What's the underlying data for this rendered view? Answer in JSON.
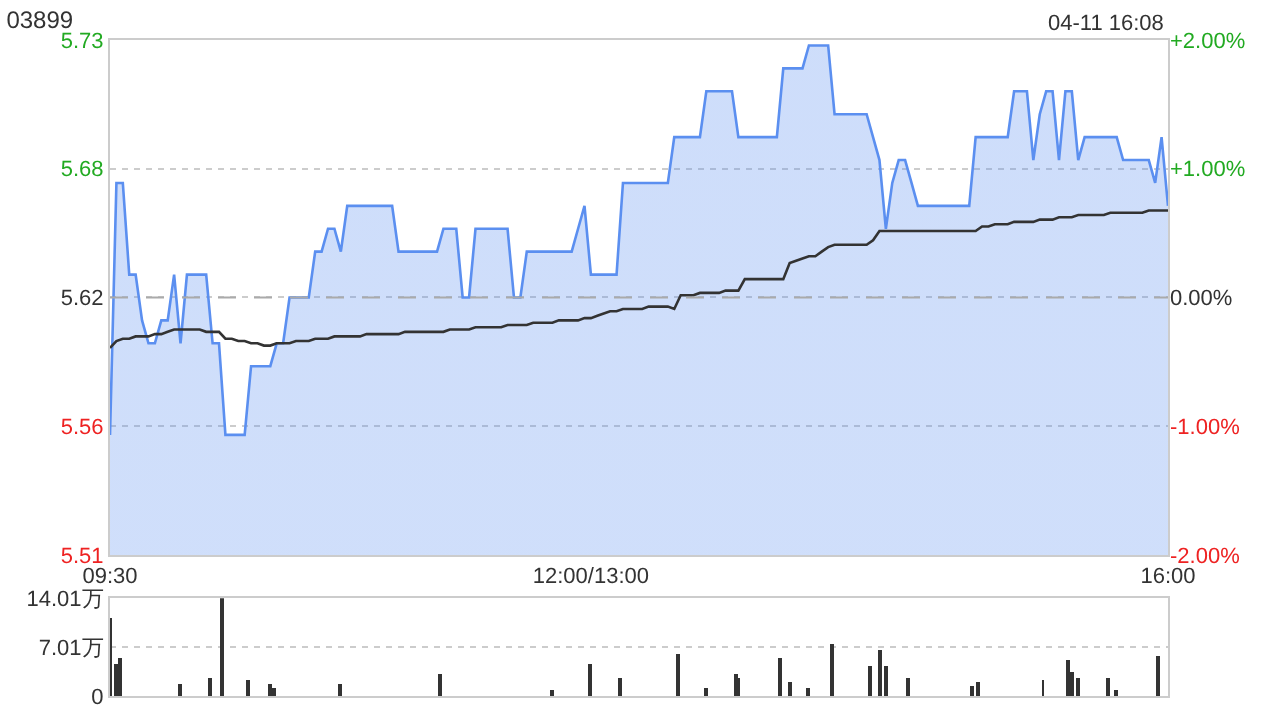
{
  "chart_data": [
    {
      "type": "area",
      "title": "03899",
      "annotations": [
        "04-11 16:08"
      ],
      "categories": [
        "09:30",
        null,
        null,
        null,
        null,
        null,
        null,
        null,
        null,
        null,
        null,
        null,
        null,
        null,
        null,
        null,
        null,
        null,
        null,
        null,
        null,
        null,
        null,
        null,
        null,
        null,
        null,
        null,
        null,
        null,
        null,
        null,
        null,
        null,
        null,
        null,
        null,
        null,
        null,
        null,
        null,
        null,
        null,
        null,
        null,
        null,
        null,
        null,
        null,
        null,
        null,
        null,
        null,
        null,
        null,
        null,
        null,
        null,
        null,
        null,
        null,
        null,
        null,
        null,
        null,
        null,
        null,
        null,
        null,
        null,
        null,
        null,
        null,
        null,
        null,
        "12:00/13:00",
        null,
        null,
        null,
        null,
        null,
        null,
        null,
        null,
        null,
        null,
        null,
        null,
        null,
        null,
        null,
        null,
        null,
        null,
        null,
        null,
        null,
        null,
        null,
        null,
        null,
        null,
        null,
        null,
        null,
        null,
        null,
        null,
        null,
        null,
        null,
        null,
        null,
        null,
        null,
        null,
        null,
        null,
        null,
        null,
        null,
        null,
        null,
        null,
        null,
        null,
        null,
        null,
        null,
        null,
        null,
        null,
        null,
        null,
        null,
        null,
        null,
        null,
        null,
        null,
        null,
        null,
        null,
        null,
        null,
        null,
        null,
        null,
        null,
        null,
        null,
        null,
        null,
        null,
        null,
        null,
        null,
        null,
        null,
        null,
        null,
        null,
        null,
        null,
        null,
        "16:00"
      ],
      "ylim": [
        5.5076,
        5.7324
      ],
      "yticks": [
        {
          "value": 5.5076,
          "label": "5.51"
        },
        {
          "value": 5.5638,
          "label": "5.56"
        },
        {
          "value": 5.62,
          "label": "5.62"
        },
        {
          "value": 5.6762,
          "label": "5.68"
        },
        {
          "value": 5.7324,
          "label": "5.73"
        }
      ],
      "y2lim": [
        -2,
        2
      ],
      "y2ticks": [
        {
          "value": -2,
          "label": "-2.00%"
        },
        {
          "value": -1,
          "label": "-1.00%"
        },
        {
          "value": 0,
          "label": "0.00%"
        },
        {
          "value": 1,
          "label": "+1.00%"
        },
        {
          "value": 2,
          "label": "+2.00%"
        }
      ],
      "grid": "y",
      "ref_lines": [
        {
          "axis": "y",
          "value": 5.62,
          "color": "#aaaaaa",
          "line_style": "dashed"
        }
      ],
      "series": [
        {
          "type": "area",
          "color": "#5b8ff0",
          "values": [
            5.56,
            5.67,
            5.67,
            5.63,
            5.63,
            5.61,
            5.6,
            5.6,
            5.61,
            5.61,
            5.63,
            5.6,
            5.63,
            5.63,
            5.63,
            5.63,
            5.6,
            5.6,
            5.56,
            5.56,
            5.56,
            5.56,
            5.59,
            5.59,
            5.59,
            5.59,
            5.6,
            5.6,
            5.62,
            5.62,
            5.62,
            5.62,
            5.64,
            5.64,
            5.65,
            5.65,
            5.64,
            5.66,
            5.66,
            5.66,
            5.66,
            5.66,
            5.66,
            5.66,
            5.66,
            5.64,
            5.64,
            5.64,
            5.64,
            5.64,
            5.64,
            5.64,
            5.65,
            5.65,
            5.65,
            5.62,
            5.62,
            5.65,
            5.65,
            5.65,
            5.65,
            5.65,
            5.65,
            5.62,
            5.62,
            5.64,
            5.64,
            5.64,
            5.64,
            5.64,
            5.64,
            5.64,
            5.64,
            5.65,
            5.66,
            5.63,
            5.63,
            5.63,
            5.63,
            5.63,
            5.67,
            5.67,
            5.67,
            5.67,
            5.67,
            5.67,
            5.67,
            5.67,
            5.69,
            5.69,
            5.69,
            5.69,
            5.69,
            5.71,
            5.71,
            5.71,
            5.71,
            5.71,
            5.69,
            5.69,
            5.69,
            5.69,
            5.69,
            5.69,
            5.69,
            5.72,
            5.72,
            5.72,
            5.72,
            5.73,
            5.73,
            5.73,
            5.73,
            5.7,
            5.7,
            5.7,
            5.7,
            5.7,
            5.7,
            5.69,
            5.68,
            5.65,
            5.67,
            5.68,
            5.68,
            5.67,
            5.66,
            5.66,
            5.66,
            5.66,
            5.66,
            5.66,
            5.66,
            5.66,
            5.66,
            5.69,
            5.69,
            5.69,
            5.69,
            5.69,
            5.69,
            5.71,
            5.71,
            5.71,
            5.68,
            5.7,
            5.71,
            5.71,
            5.68,
            5.71,
            5.71,
            5.68,
            5.69,
            5.69,
            5.69,
            5.69,
            5.69,
            5.69,
            5.68,
            5.68,
            5.68,
            5.68,
            5.68,
            5.67,
            5.69,
            5.66
          ]
        },
        {
          "type": "line",
          "color": "#333333",
          "values": [
            5.598,
            5.601,
            5.602,
            5.602,
            5.603,
            5.603,
            5.603,
            5.604,
            5.604,
            5.605,
            5.606,
            5.606,
            5.606,
            5.606,
            5.606,
            5.605,
            5.605,
            5.605,
            5.602,
            5.602,
            5.601,
            5.601,
            5.6,
            5.6,
            5.599,
            5.599,
            5.6,
            5.6,
            5.6,
            5.601,
            5.601,
            5.601,
            5.602,
            5.602,
            5.602,
            5.603,
            5.603,
            5.603,
            5.603,
            5.603,
            5.604,
            5.604,
            5.604,
            5.604,
            5.604,
            5.604,
            5.605,
            5.605,
            5.605,
            5.605,
            5.605,
            5.605,
            5.605,
            5.606,
            5.606,
            5.606,
            5.606,
            5.607,
            5.607,
            5.607,
            5.607,
            5.607,
            5.608,
            5.608,
            5.608,
            5.608,
            5.609,
            5.609,
            5.609,
            5.609,
            5.61,
            5.61,
            5.61,
            5.61,
            5.611,
            5.611,
            5.612,
            5.613,
            5.614,
            5.614,
            5.615,
            5.615,
            5.615,
            5.615,
            5.616,
            5.616,
            5.616,
            5.616,
            5.615,
            5.621,
            5.621,
            5.621,
            5.622,
            5.622,
            5.622,
            5.622,
            5.623,
            5.623,
            5.623,
            5.628,
            5.628,
            5.628,
            5.628,
            5.628,
            5.628,
            5.628,
            5.635,
            5.636,
            5.637,
            5.638,
            5.638,
            5.64,
            5.642,
            5.643,
            5.643,
            5.643,
            5.643,
            5.643,
            5.643,
            5.645,
            5.649,
            5.649,
            5.649,
            5.649,
            5.649,
            5.649,
            5.649,
            5.649,
            5.649,
            5.649,
            5.649,
            5.649,
            5.649,
            5.649,
            5.649,
            5.649,
            5.651,
            5.651,
            5.652,
            5.652,
            5.652,
            5.653,
            5.653,
            5.653,
            5.653,
            5.654,
            5.654,
            5.654,
            5.655,
            5.655,
            5.655,
            5.656,
            5.656,
            5.656,
            5.656,
            5.656,
            5.657,
            5.657,
            5.657,
            5.657,
            5.657,
            5.657,
            5.658,
            5.658,
            5.658,
            5.658
          ]
        }
      ]
    },
    {
      "type": "bar",
      "tick_labels": "y",
      "grid": "y",
      "categories": [
        null,
        null,
        null,
        null,
        null,
        null,
        null,
        null,
        null,
        null,
        null,
        null,
        null,
        null,
        null,
        null,
        null,
        null,
        null,
        null,
        null,
        null,
        null,
        null,
        null,
        null,
        null,
        null,
        null,
        null,
        null,
        null,
        null,
        null,
        null,
        null,
        null,
        null,
        null,
        null,
        null,
        null,
        null,
        null,
        null,
        null,
        null,
        null,
        null,
        null,
        null,
        null,
        null,
        null,
        null,
        null,
        null,
        null,
        null,
        null,
        null,
        null,
        null,
        null,
        null,
        null,
        null,
        null,
        null,
        null,
        null,
        null,
        null,
        null,
        null,
        null,
        null,
        null,
        null,
        null,
        null,
        null,
        null,
        null,
        null,
        null,
        null,
        null,
        null,
        null,
        null,
        null,
        null,
        null,
        null,
        null,
        null,
        null,
        null,
        null,
        null,
        null,
        null,
        null,
        null,
        null,
        null,
        null,
        null,
        null,
        null,
        null,
        null,
        null,
        null,
        null,
        null,
        null,
        null,
        null,
        null,
        null,
        null,
        null,
        null,
        null,
        null,
        null,
        null,
        null,
        null,
        null,
        null,
        null,
        null,
        null,
        null,
        null,
        null,
        null,
        null,
        null,
        null,
        null,
        null,
        null,
        null,
        null,
        null,
        null,
        null,
        null,
        null,
        null,
        null,
        null,
        null,
        null,
        null,
        null,
        null,
        null,
        null,
        null,
        null,
        null,
        null,
        null,
        null,
        null,
        null,
        null,
        null,
        null,
        null,
        null,
        null,
        null,
        null,
        null,
        null,
        null,
        null,
        null,
        null,
        null,
        null,
        null,
        null,
        null,
        null,
        null,
        null,
        null,
        null,
        null,
        null,
        null,
        null,
        null,
        null,
        null,
        null,
        null,
        null,
        null,
        null,
        null,
        null,
        null,
        null,
        null,
        null,
        null,
        null,
        null,
        null,
        null,
        null,
        null,
        null,
        null,
        null,
        null,
        null,
        null,
        null,
        null,
        null,
        null,
        null,
        null,
        null,
        null,
        null,
        null,
        null,
        null,
        null,
        null,
        null,
        null,
        null,
        null,
        null,
        null,
        null,
        null,
        null,
        null,
        null,
        null,
        null,
        null,
        null,
        null,
        null,
        null,
        null,
        null,
        null,
        null,
        null,
        null,
        null,
        null,
        null,
        null,
        null,
        null,
        null,
        null,
        null,
        null,
        null,
        null,
        null,
        null,
        null,
        null,
        null,
        null,
        null,
        null,
        null,
        null,
        null,
        null,
        null,
        null,
        null,
        null,
        null,
        null,
        null,
        null,
        null,
        null,
        null,
        null,
        null,
        null,
        null,
        null,
        null,
        null,
        null,
        null,
        null,
        null,
        null,
        null,
        null,
        null,
        null,
        null,
        null,
        null,
        null,
        null,
        null,
        null,
        null,
        null,
        null,
        null,
        null,
        null,
        null,
        null,
        null
      ],
      "ylim": [
        0,
        14.01
      ],
      "yticks": [
        {
          "value": 0,
          "label": "0"
        },
        {
          "value": 7.01,
          "label": "7.01万"
        },
        {
          "value": 14.01,
          "label": "14.01万"
        }
      ],
      "series": [
        {
          "color": "#333333",
          "values": [
            11.1,
            null,
            4.6,
            5.5,
            null,
            null,
            null,
            null,
            null,
            null,
            null,
            null,
            null,
            null,
            null,
            null,
            null,
            null,
            null,
            null,
            null,
            null,
            1.7,
            null,
            null,
            null,
            null,
            null,
            null,
            null,
            null,
            2.6,
            null,
            null,
            null,
            14.0,
            null,
            null,
            null,
            null,
            null,
            null,
            null,
            2.4,
            null,
            null,
            null,
            null,
            null,
            null,
            1.7,
            1.1,
            null,
            null,
            null,
            null,
            null,
            null,
            null,
            null,
            null,
            null,
            null,
            null,
            null,
            null,
            null,
            null,
            null,
            null,
            null,
            null,
            1.7,
            null,
            null,
            null,
            null,
            null,
            null,
            null,
            null,
            null,
            null,
            null,
            null,
            null,
            null,
            null,
            null,
            null,
            null,
            null,
            null,
            null,
            null,
            null,
            null,
            null,
            null,
            null,
            null,
            null,
            null,
            3.2,
            null,
            null,
            null,
            null,
            null,
            null,
            null,
            null,
            null,
            null,
            null,
            null,
            null,
            null,
            null,
            null,
            null,
            null,
            null,
            null,
            null,
            null,
            null,
            null,
            null,
            null,
            null,
            null,
            null,
            null,
            null,
            null,
            null,
            null,
            0.8,
            null,
            null,
            null,
            null,
            null,
            null,
            null,
            null,
            null,
            null,
            null,
            4.6,
            null,
            null,
            null,
            null,
            null,
            null,
            null,
            null,
            2.6,
            null,
            null,
            null,
            null,
            null,
            null,
            null,
            null,
            null,
            null,
            null,
            null,
            null,
            null,
            null,
            null,
            null,
            6.0,
            null,
            null,
            null,
            null,
            null,
            null,
            null,
            null,
            1.1,
            null,
            null,
            null,
            null,
            null,
            null,
            null,
            null,
            3.2,
            2.6,
            null,
            null,
            null,
            null,
            null,
            null,
            null,
            null,
            null,
            null,
            null,
            null,
            5.5,
            null,
            null,
            2.1,
            null,
            null,
            null,
            null,
            null,
            1.1,
            null,
            null,
            null,
            null,
            null,
            null,
            7.4,
            null,
            null,
            null,
            null,
            null,
            null,
            null,
            null,
            null,
            null,
            null,
            4.2,
            null,
            null,
            6.5,
            null,
            4.2,
            null,
            null,
            null,
            null,
            null,
            null,
            2.6,
            null,
            null,
            null,
            null,
            null,
            null,
            null,
            null,
            null,
            null,
            null,
            null,
            null,
            null,
            null,
            null,
            null,
            null,
            null,
            1.5,
            null,
            2.1,
            null,
            null,
            null,
            null,
            null,
            null,
            null,
            null,
            null,
            null,
            null,
            null,
            null,
            null,
            null,
            null,
            null,
            null,
            null,
            2.3,
            null,
            null,
            null,
            null,
            null,
            null,
            null,
            5.1,
            3.4,
            null,
            2.6,
            null,
            null,
            null,
            null,
            null,
            null,
            null,
            null,
            2.6,
            null,
            null,
            0.9,
            null,
            null,
            null,
            null,
            null,
            null,
            null,
            null,
            null,
            null,
            null,
            null,
            5.7,
            null,
            null,
            null
          ]
        }
      ]
    }
  ]
}
